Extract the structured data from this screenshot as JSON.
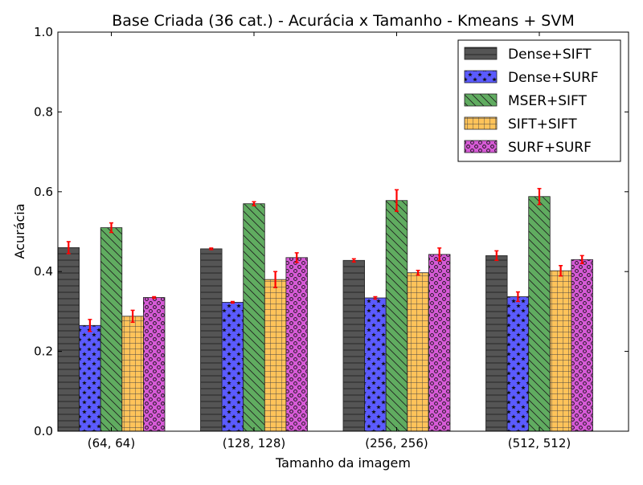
{
  "chart_data": {
    "type": "bar",
    "title": "Base Criada (36 cat.) - Acurácia x Tamanho - Kmeans + SVM",
    "xlabel": "Tamanho da imagem",
    "ylabel": "Acurácia",
    "ylim": [
      0,
      1.0
    ],
    "yticks": [
      "0.0",
      "0.2",
      "0.4",
      "0.6",
      "0.8",
      "1.0"
    ],
    "grid": false,
    "legend_position": "top-right",
    "categories": [
      "(64, 64)",
      "(128, 128)",
      "(256, 256)",
      "(512, 512)"
    ],
    "error_color": "#ff0000",
    "series": [
      {
        "name": "Dense+SIFT",
        "color": "#555555",
        "hatch": "horizontal",
        "values": [
          0.46,
          0.457,
          0.428,
          0.44
        ],
        "errors": [
          0.015,
          0.002,
          0.004,
          0.012
        ]
      },
      {
        "name": "Dense+SURF",
        "color": "#5b5bff",
        "hatch": "stars",
        "values": [
          0.265,
          0.323,
          0.334,
          0.337
        ],
        "errors": [
          0.015,
          0.002,
          0.003,
          0.012
        ]
      },
      {
        "name": "MSER+SIFT",
        "color": "#60ac60",
        "hatch": "backslash",
        "values": [
          0.51,
          0.57,
          0.578,
          0.588
        ],
        "errors": [
          0.012,
          0.005,
          0.027,
          0.02
        ]
      },
      {
        "name": "SIFT+SIFT",
        "color": "#ffc35a",
        "hatch": "grid",
        "values": [
          0.288,
          0.38,
          0.397,
          0.402
        ],
        "errors": [
          0.015,
          0.02,
          0.006,
          0.013
        ]
      },
      {
        "name": "SURF+SURF",
        "color": "#d65ad6",
        "hatch": "circles",
        "values": [
          0.335,
          0.435,
          0.443,
          0.43
        ],
        "errors": [
          0.002,
          0.012,
          0.016,
          0.01
        ]
      }
    ]
  }
}
